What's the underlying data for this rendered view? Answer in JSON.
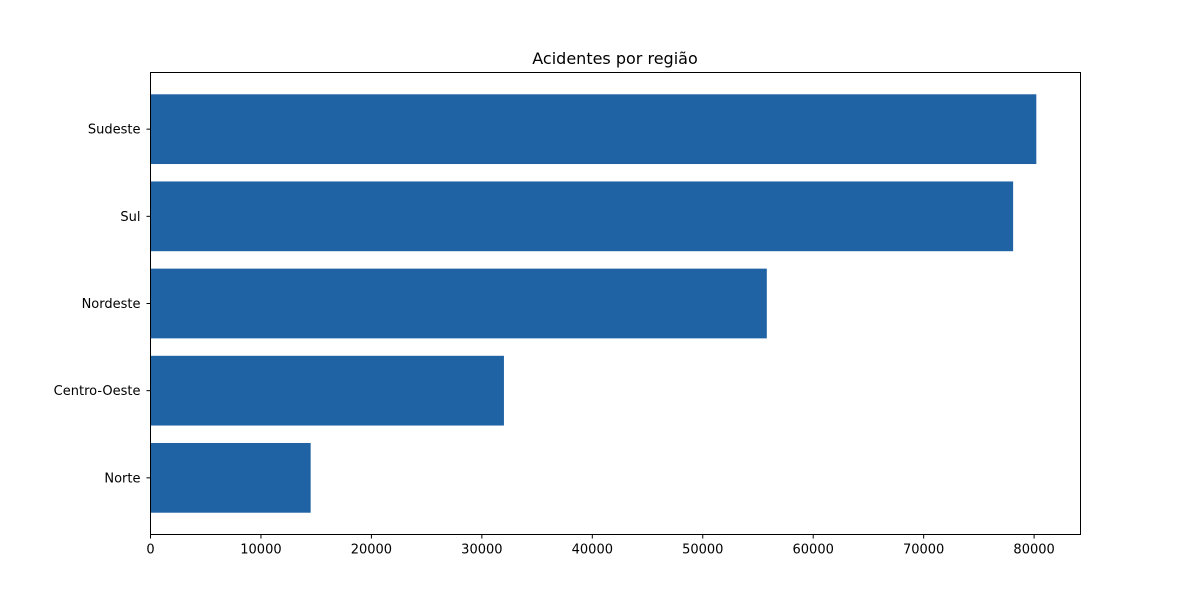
{
  "chart_data": {
    "type": "bar",
    "orientation": "horizontal",
    "title": "Acidentes por região",
    "xlabel": "",
    "ylabel": "",
    "categories": [
      "Sudeste",
      "Sul",
      "Nordeste",
      "Centro-Oeste",
      "Norte"
    ],
    "values": [
      80200,
      78100,
      55800,
      32000,
      14500
    ],
    "xlim": [
      0,
      84200
    ],
    "xticks": [
      0,
      10000,
      20000,
      30000,
      40000,
      50000,
      60000,
      70000,
      80000
    ],
    "xtick_labels": [
      "0",
      "10000",
      "20000",
      "30000",
      "40000",
      "50000",
      "60000",
      "70000",
      "80000"
    ],
    "grid": false,
    "legend": "none",
    "bar_color": "#2063a5"
  }
}
